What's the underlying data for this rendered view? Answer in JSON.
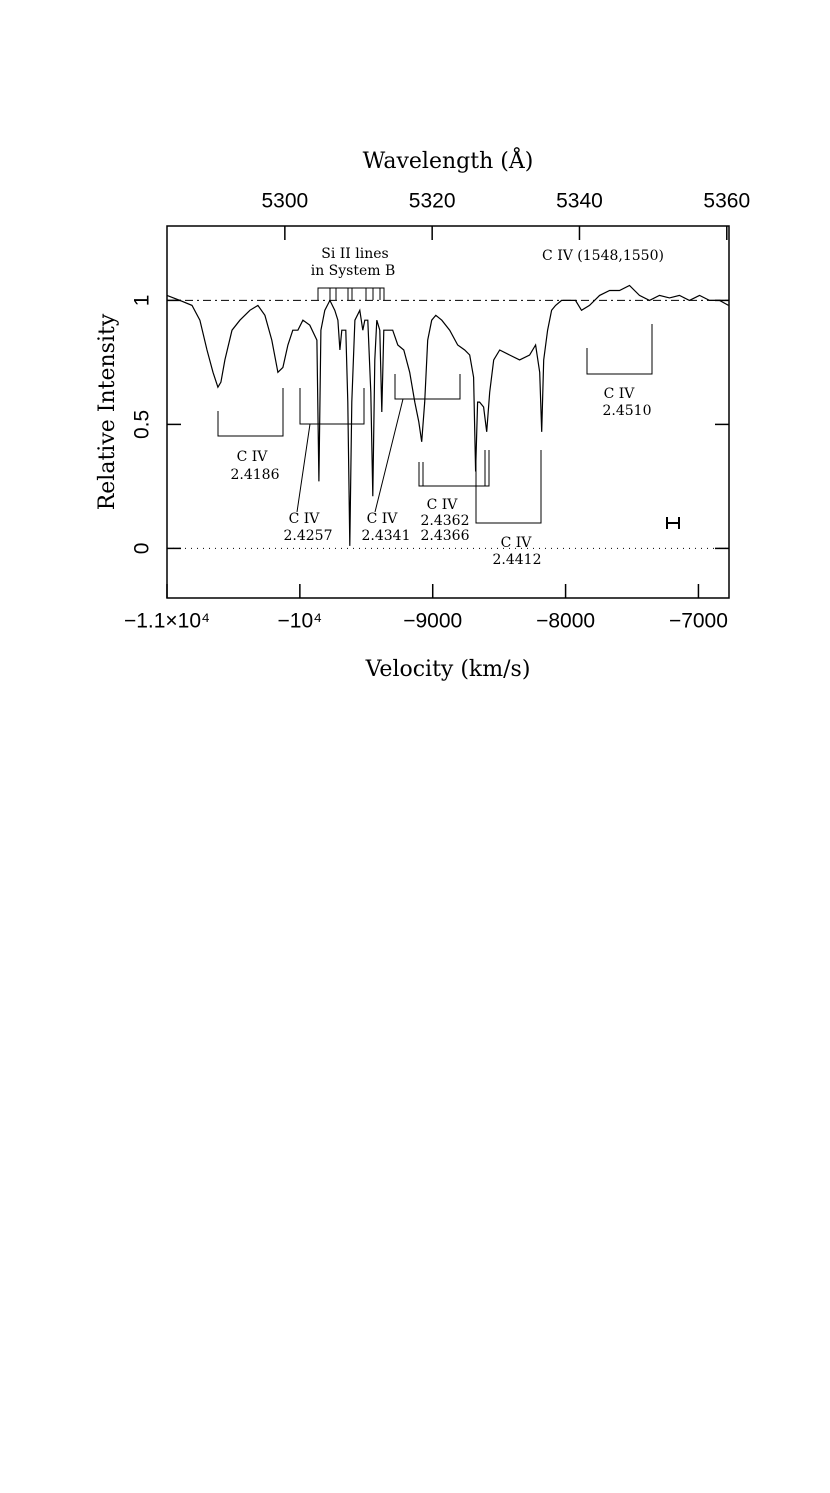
{
  "chart_data": {
    "type": "line",
    "xlabel": "Velocity (km/s)",
    "ylabel": "Relative Intensity",
    "x2label": "Wavelength (Å)",
    "xlim": [
      -11000,
      -6770
    ],
    "ylim": [
      -0.2,
      1.3
    ],
    "x2lim": [
      5284,
      5360.3
    ],
    "xticks": [
      {
        "value": -11000,
        "label": "−1.1×10⁴"
      },
      {
        "value": -10000,
        "label": "−10⁴"
      },
      {
        "value": -9000,
        "label": "−9000"
      },
      {
        "value": -8000,
        "label": "−8000"
      },
      {
        "value": -7000,
        "label": "−7000"
      }
    ],
    "yticks": [
      0,
      0.5,
      1
    ],
    "x2ticks": [
      5300,
      5320,
      5340,
      5360
    ],
    "hlines": [
      {
        "value": 1,
        "style": "dash-dot"
      },
      {
        "value": 0,
        "style": "dotted"
      }
    ],
    "color": "#000000",
    "x": [
      -11000,
      -10902,
      -10812,
      -10752,
      -10699,
      -10654,
      -10617,
      -10594,
      -10564,
      -10511,
      -10451,
      -10376,
      -10316,
      -10263,
      -10211,
      -10165,
      -10128,
      -10090,
      -10053,
      -10015,
      -9977,
      -9925,
      -9872,
      -9857,
      -9842,
      -9812,
      -9774,
      -9737,
      -9714,
      -9699,
      -9684,
      -9654,
      -9639,
      -9624,
      -9609,
      -9586,
      -9549,
      -9526,
      -9511,
      -9489,
      -9466,
      -9451,
      -9436,
      -9421,
      -9398,
      -9383,
      -9368,
      -9338,
      -9301,
      -9263,
      -9218,
      -9173,
      -9135,
      -9105,
      -9083,
      -9060,
      -9038,
      -9008,
      -8977,
      -8932,
      -8872,
      -8812,
      -8759,
      -8722,
      -8692,
      -8677,
      -8662,
      -8647,
      -8617,
      -8594,
      -8571,
      -8541,
      -8496,
      -8421,
      -8346,
      -8271,
      -8226,
      -8195,
      -8180,
      -8165,
      -8135,
      -8105,
      -8075,
      -8030,
      -7970,
      -7925,
      -7880,
      -7820,
      -7744,
      -7669,
      -7594,
      -7519,
      -7444,
      -7368,
      -7293,
      -7218,
      -7143,
      -7068,
      -6992,
      -6917,
      -6842,
      -6774
    ],
    "values": [
      1.02,
      1.0,
      0.98,
      0.92,
      0.8,
      0.71,
      0.65,
      0.67,
      0.76,
      0.88,
      0.92,
      0.96,
      0.98,
      0.94,
      0.84,
      0.71,
      0.73,
      0.82,
      0.88,
      0.88,
      0.92,
      0.9,
      0.84,
      0.27,
      0.88,
      0.96,
      1.0,
      0.96,
      0.92,
      0.8,
      0.88,
      0.88,
      0.59,
      0.01,
      0.59,
      0.92,
      0.96,
      0.88,
      0.92,
      0.92,
      0.63,
      0.21,
      0.76,
      0.92,
      0.88,
      0.55,
      0.88,
      0.88,
      0.88,
      0.82,
      0.8,
      0.71,
      0.59,
      0.51,
      0.43,
      0.59,
      0.84,
      0.92,
      0.94,
      0.92,
      0.88,
      0.82,
      0.8,
      0.78,
      0.69,
      0.31,
      0.59,
      0.59,
      0.57,
      0.47,
      0.63,
      0.76,
      0.8,
      0.78,
      0.76,
      0.78,
      0.82,
      0.71,
      0.47,
      0.76,
      0.88,
      0.96,
      0.98,
      1.0,
      1.0,
      1.0,
      0.96,
      0.98,
      1.02,
      1.04,
      1.04,
      1.06,
      1.02,
      1.0,
      1.02,
      1.01,
      1.02,
      1.0,
      1.02,
      1.0,
      1.0,
      0.98
    ],
    "annotations": [
      "C IV (1548,1550)",
      "Si II lines",
      "in System B",
      "C IV",
      "2.4186",
      "C IV",
      "2.4257",
      "C IV",
      "2.4341",
      "C IV",
      "2.4362",
      "2.4366",
      "C IV",
      "2.4412",
      "C IV",
      "2.4510"
    ]
  }
}
